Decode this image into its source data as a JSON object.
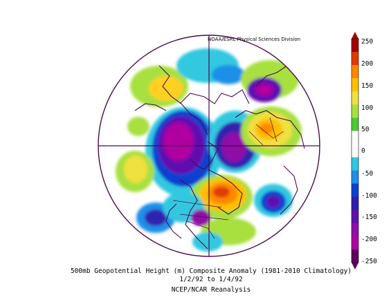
{
  "credit": "NOAA/ESRL Physical Sciences Division",
  "caption": {
    "line1": "500mb Geopotential Height (m) Composite Anomaly (1981-2010 Climatology)",
    "line2": "1/2/92  to 1/4/92",
    "line3": "NCEP/NCAR Reanalysis"
  },
  "colorbar": {
    "labels": [
      "250",
      "200",
      "150",
      "100",
      "50",
      "0",
      "-50",
      "-100",
      "-150",
      "-200",
      "-250"
    ],
    "colors": [
      "#a60000",
      "#e03c00",
      "#ff8800",
      "#ffc000",
      "#f0e040",
      "#a8e040",
      "#50c830",
      "#ffffff",
      "#ffffff",
      "#30c8e0",
      "#1e90e8",
      "#1040d0",
      "#3020b0",
      "#6010b0",
      "#9010a8",
      "#b000a0",
      "#600060"
    ]
  },
  "colors": {
    "boundary": "#4a0a4a",
    "land_lines": "#4a0a4a"
  }
}
